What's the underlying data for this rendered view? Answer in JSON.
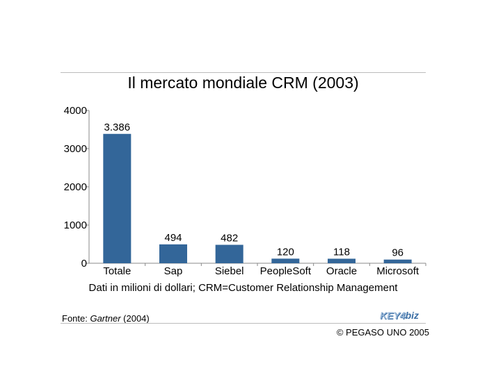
{
  "chart_data": {
    "type": "bar",
    "title": "Il mercato mondiale CRM (2003)",
    "categories": [
      "Totale",
      "Sap",
      "Siebel",
      "PeopleSoft",
      "Oracle",
      "Microsoft"
    ],
    "values": [
      3386,
      494,
      482,
      120,
      118,
      96
    ],
    "data_labels": [
      "3.386",
      "494",
      "482",
      "120",
      "118",
      "96"
    ],
    "yticks": [
      "0",
      "1000",
      "2000",
      "3000",
      "4000"
    ],
    "ylim": [
      0,
      4000
    ],
    "xlabel": "",
    "ylabel": "",
    "grid": false,
    "bar_color": "#336699"
  },
  "note": "Dati in milioni di dollari; CRM=Customer Relationship Management",
  "source": {
    "prefix": "Fonte: ",
    "name": "Gartner",
    "suffix": " (2004)"
  },
  "logo": {
    "part1": "KEY4",
    "part2": "biz"
  },
  "copyright": "© PEGASO UNO 2005"
}
